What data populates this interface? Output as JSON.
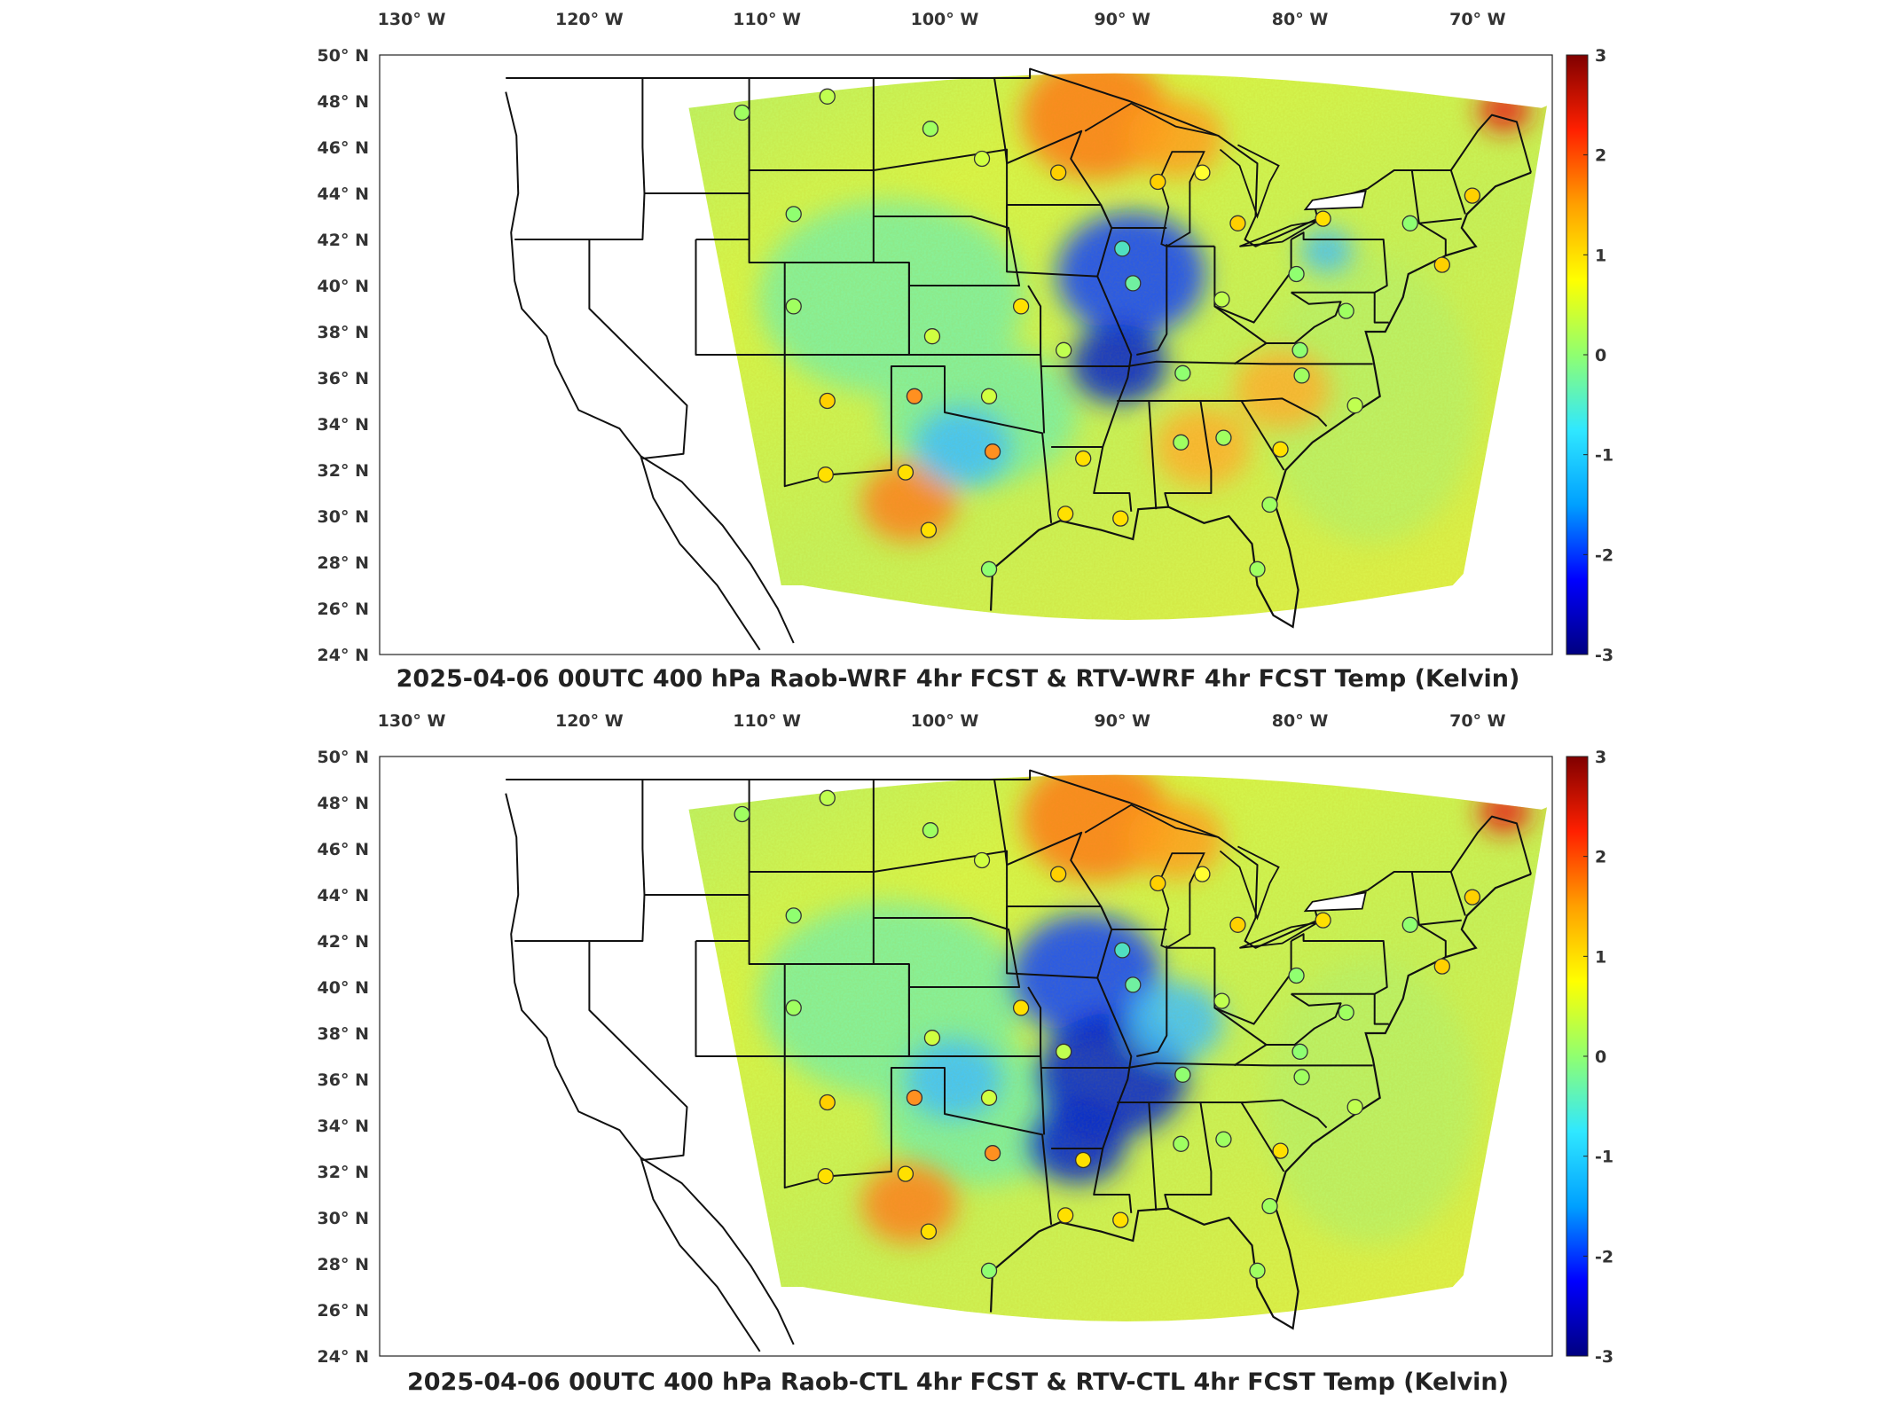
{
  "colorbar": {
    "ticks": [
      "3",
      "2",
      "1",
      "0",
      "-1",
      "-2",
      "-3"
    ],
    "range": [
      -3,
      3
    ],
    "colors": [
      "#000080",
      "#0000ff",
      "#00a0ff",
      "#30e8ff",
      "#90ff70",
      "#ffff00",
      "#ffa000",
      "#ff2000",
      "#800000"
    ]
  },
  "axes": {
    "lon_labels": [
      "130° W",
      "120° W",
      "110° W",
      "100° W",
      "90° W",
      "80° W",
      "70° W"
    ],
    "lat_labels": [
      "50° N",
      "48° N",
      "46° N",
      "44° N",
      "42° N",
      "40° N",
      "38° N",
      "36° N",
      "34° N",
      "32° N",
      "30° N",
      "28° N",
      "26° N",
      "24° N"
    ]
  },
  "panels": [
    {
      "title": "2025-04-06 00UTC 400 hPa Raob-WRF 4hr FCST & RTV-WRF 4hr FCST Temp (Kelvin)",
      "highlights": [
        {
          "color": "#ff7a1a",
          "lon": -91.5,
          "lat": 47.3,
          "size": "large"
        },
        {
          "color": "#ffa020",
          "lon": -87.0,
          "lat": 46.4,
          "size": "medium"
        },
        {
          "color": "#ffb030",
          "lon": -81.0,
          "lat": 35.5,
          "size": "medium"
        },
        {
          "color": "#ff8020",
          "lon": -102.0,
          "lat": 30.6,
          "size": "medium"
        },
        {
          "color": "#ffb030",
          "lon": -85.5,
          "lat": 33.0,
          "size": "medium"
        },
        {
          "color": "#e81818",
          "lon": -68.5,
          "lat": 47.6,
          "size": "small"
        },
        {
          "color": "#1040ff",
          "lon": -89.5,
          "lat": 40.5,
          "size": "large"
        },
        {
          "color": "#0020d0",
          "lon": -90.2,
          "lat": 36.6,
          "size": "medium"
        },
        {
          "color": "#40c0ff",
          "lon": -99.0,
          "lat": 33.0,
          "size": "medium"
        },
        {
          "color": "#40c0ff",
          "lon": -78.5,
          "lat": 41.5,
          "size": "small"
        }
      ]
    },
    {
      "title": "2025-04-06 00UTC 400 hPa Raob-CTL 4hr FCST & RTV-CTL 4hr FCST Temp (Kelvin)",
      "highlights": [
        {
          "color": "#ff7a1a",
          "lon": -91.5,
          "lat": 47.3,
          "size": "large"
        },
        {
          "color": "#ffa020",
          "lon": -87.0,
          "lat": 46.4,
          "size": "medium"
        },
        {
          "color": "#ff8020",
          "lon": -102.0,
          "lat": 30.6,
          "size": "medium"
        },
        {
          "color": "#e81818",
          "lon": -68.5,
          "lat": 47.6,
          "size": "small"
        },
        {
          "color": "#1040ff",
          "lon": -92.0,
          "lat": 40.5,
          "size": "large"
        },
        {
          "color": "#0020d0",
          "lon": -90.5,
          "lat": 36.2,
          "size": "large"
        },
        {
          "color": "#0020d0",
          "lon": -92.5,
          "lat": 33.2,
          "size": "medium"
        },
        {
          "color": "#40c0ff",
          "lon": -99.5,
          "lat": 36.0,
          "size": "medium"
        },
        {
          "color": "#40c0ff",
          "lon": -87.0,
          "lat": 38.5,
          "size": "medium"
        }
      ]
    }
  ],
  "stations": [
    {
      "lon": -111.4,
      "lat": 47.5,
      "color": "#a0ff60"
    },
    {
      "lon": -106.6,
      "lat": 48.2,
      "color": "#c0ff50"
    },
    {
      "lon": -100.8,
      "lat": 46.8,
      "color": "#a0ff60"
    },
    {
      "lon": -97.9,
      "lat": 45.5,
      "color": "#d0ff40"
    },
    {
      "lon": -93.6,
      "lat": 44.9,
      "color": "#ffd000"
    },
    {
      "lon": -88.0,
      "lat": 44.5,
      "color": "#ffd000"
    },
    {
      "lon": -85.5,
      "lat": 44.9,
      "color": "#ffff30"
    },
    {
      "lon": -108.5,
      "lat": 43.1,
      "color": "#90ff70"
    },
    {
      "lon": -90.0,
      "lat": 41.6,
      "color": "#50e0c0"
    },
    {
      "lon": -83.5,
      "lat": 42.7,
      "color": "#ffd000"
    },
    {
      "lon": -78.7,
      "lat": 42.9,
      "color": "#ffe000"
    },
    {
      "lon": -73.8,
      "lat": 42.7,
      "color": "#90ff70"
    },
    {
      "lon": -70.3,
      "lat": 43.9,
      "color": "#ffd000"
    },
    {
      "lon": -72.0,
      "lat": 40.9,
      "color": "#ffd000"
    },
    {
      "lon": -77.4,
      "lat": 38.9,
      "color": "#a0ff60"
    },
    {
      "lon": -80.2,
      "lat": 40.5,
      "color": "#90ff70"
    },
    {
      "lon": -84.4,
      "lat": 39.4,
      "color": "#c0ff50"
    },
    {
      "lon": -89.4,
      "lat": 40.1,
      "color": "#70f0a0"
    },
    {
      "lon": -95.7,
      "lat": 39.1,
      "color": "#ffe000"
    },
    {
      "lon": -100.7,
      "lat": 37.8,
      "color": "#d0ff40"
    },
    {
      "lon": -108.5,
      "lat": 39.1,
      "color": "#a0ff60"
    },
    {
      "lon": -93.3,
      "lat": 37.2,
      "color": "#c0ff50"
    },
    {
      "lon": -86.6,
      "lat": 36.2,
      "color": "#90ff70"
    },
    {
      "lon": -79.9,
      "lat": 36.1,
      "color": "#a0ff60"
    },
    {
      "lon": -80.0,
      "lat": 37.2,
      "color": "#90ff70"
    },
    {
      "lon": -76.9,
      "lat": 34.8,
      "color": "#c0ff50"
    },
    {
      "lon": -106.6,
      "lat": 35.0,
      "color": "#ffd000"
    },
    {
      "lon": -101.7,
      "lat": 35.2,
      "color": "#ff9020"
    },
    {
      "lon": -97.5,
      "lat": 35.2,
      "color": "#d0ff40"
    },
    {
      "lon": -97.3,
      "lat": 32.8,
      "color": "#ff9020"
    },
    {
      "lon": -92.2,
      "lat": 32.5,
      "color": "#ffe000"
    },
    {
      "lon": -86.7,
      "lat": 33.2,
      "color": "#a0ff60"
    },
    {
      "lon": -84.3,
      "lat": 33.4,
      "color": "#a0ff60"
    },
    {
      "lon": -81.1,
      "lat": 32.9,
      "color": "#ffe000"
    },
    {
      "lon": -106.7,
      "lat": 31.8,
      "color": "#ffe000"
    },
    {
      "lon": -102.2,
      "lat": 31.9,
      "color": "#ffe000"
    },
    {
      "lon": -100.9,
      "lat": 29.4,
      "color": "#ffe000"
    },
    {
      "lon": -97.5,
      "lat": 27.7,
      "color": "#90ff70"
    },
    {
      "lon": -93.2,
      "lat": 30.1,
      "color": "#ffe000"
    },
    {
      "lon": -81.7,
      "lat": 30.5,
      "color": "#a0ff60"
    },
    {
      "lon": -82.4,
      "lat": 27.7,
      "color": "#a0ff60"
    },
    {
      "lon": -90.1,
      "lat": 29.9,
      "color": "#ffe000"
    }
  ]
}
